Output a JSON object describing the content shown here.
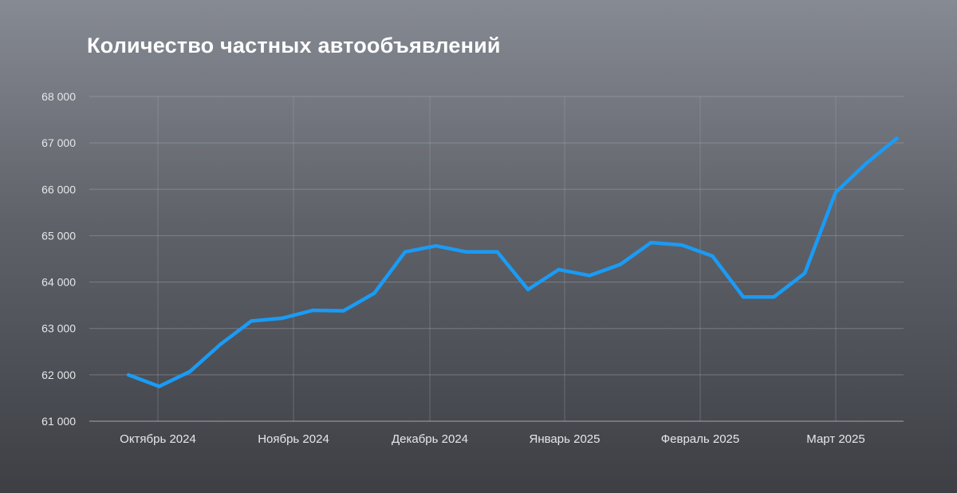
{
  "chart_data": {
    "type": "line",
    "title": "Количество частных автообъявлений",
    "xlabel": "",
    "ylabel": "",
    "ylim": [
      61000,
      68000
    ],
    "y_ticks": [
      61000,
      62000,
      63000,
      64000,
      65000,
      66000,
      67000,
      68000
    ],
    "y_tick_labels": [
      "61 000",
      "62 000",
      "63 000",
      "64 000",
      "65 000",
      "66 000",
      "67 000",
      "68 000"
    ],
    "x_tick_labels": [
      "Октябрь 2024",
      "Ноябрь 2024",
      "Декабрь 2024",
      "Январь 2025",
      "Февраль 2025",
      "Март 2025"
    ],
    "grid": true,
    "legend": "none",
    "series": [
      {
        "color": "#1a9bf5",
        "values": [
          62000,
          61750,
          62070,
          62660,
          63160,
          63220,
          63390,
          63380,
          63760,
          64650,
          64780,
          64650,
          64650,
          63840,
          64270,
          64140,
          64380,
          64850,
          64800,
          64560,
          63680,
          63680,
          64190,
          65930,
          66560,
          67100
        ]
      }
    ]
  }
}
